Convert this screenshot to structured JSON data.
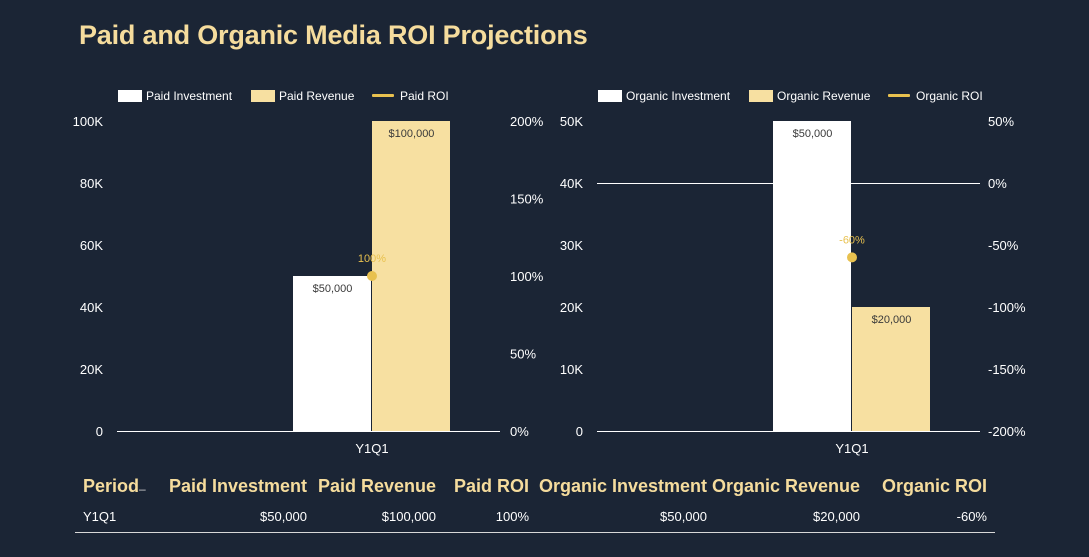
{
  "title": "Paid and Organic Media ROI Projections",
  "colors": {
    "background": "#1b2535",
    "investment": "#ffffff",
    "revenue": "#f7e0a1",
    "roi": "#e8c14f",
    "header_text": "#f5dc9d"
  },
  "chart_data": [
    {
      "type": "bar",
      "categories": [
        "Y1Q1"
      ],
      "series": [
        {
          "name": "Paid Investment",
          "values": [
            50000
          ],
          "labels": [
            "$50,000"
          ],
          "kind": "bar",
          "axis": "left"
        },
        {
          "name": "Paid Revenue",
          "values": [
            100000
          ],
          "labels": [
            "$100,000"
          ],
          "kind": "bar",
          "axis": "left"
        },
        {
          "name": "Paid ROI",
          "values": [
            100
          ],
          "labels": [
            "100%"
          ],
          "kind": "line",
          "axis": "right"
        }
      ],
      "y_left": {
        "ylim": [
          0,
          100000
        ],
        "ticks": [
          "0",
          "20K",
          "40K",
          "60K",
          "80K",
          "100K"
        ]
      },
      "y_right": {
        "ylim": [
          0,
          200
        ],
        "ticks": [
          "0%",
          "50%",
          "100%",
          "150%",
          "200%"
        ]
      },
      "legend": "top-left",
      "grid": false
    },
    {
      "type": "bar",
      "categories": [
        "Y1Q1"
      ],
      "series": [
        {
          "name": "Organic Investment",
          "values": [
            50000
          ],
          "labels": [
            "$50,000"
          ],
          "kind": "bar",
          "axis": "left"
        },
        {
          "name": "Organic Revenue",
          "values": [
            20000
          ],
          "labels": [
            "$20,000"
          ],
          "kind": "bar",
          "axis": "left"
        },
        {
          "name": "Organic ROI",
          "values": [
            -60
          ],
          "labels": [
            "-60%"
          ],
          "kind": "line",
          "axis": "right"
        }
      ],
      "y_left": {
        "ylim": [
          0,
          50000
        ],
        "ticks": [
          "0",
          "10K",
          "20K",
          "30K",
          "40K",
          "50K"
        ]
      },
      "y_right": {
        "ylim": [
          -200,
          50
        ],
        "ticks": [
          "-200%",
          "-150%",
          "-100%",
          "-50%",
          "0%",
          "50%"
        ]
      },
      "legend": "top-left",
      "grid": false
    }
  ],
  "table": {
    "headers": [
      "Period",
      "Paid Investment",
      "Paid Revenue",
      "Paid ROI",
      "Organic Investment",
      "Organic Revenue",
      "Organic ROI"
    ],
    "sort_icon": "sort-indicator-icon",
    "rows": [
      [
        "Y1Q1",
        "$50,000",
        "$100,000",
        "100%",
        "$50,000",
        "$20,000",
        "-60%"
      ]
    ]
  }
}
